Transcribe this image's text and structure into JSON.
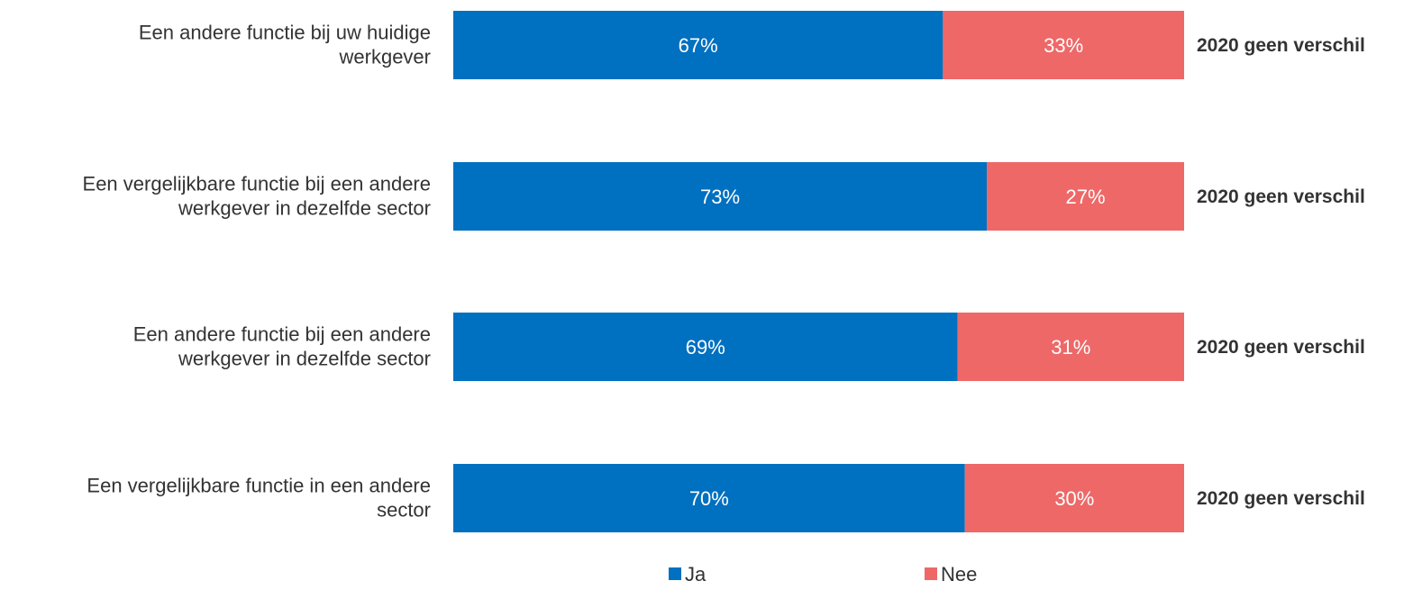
{
  "chart_data": {
    "type": "bar",
    "orientation": "horizontal",
    "stacked": true,
    "categories": [
      [
        "Een andere functie bij uw huidige",
        "werkgever"
      ],
      [
        "Een vergelijkbare functie bij een andere",
        "werkgever in dezelfde sector"
      ],
      [
        "Een andere functie bij een andere",
        "werkgever in dezelfde sector"
      ],
      [
        "Een vergelijkbare functie in een andere",
        "sector"
      ]
    ],
    "series": [
      {
        "name": "Ja",
        "color": "#0070C0",
        "values": [
          67,
          73,
          69,
          70
        ]
      },
      {
        "name": "Nee",
        "color": "#EE6868",
        "values": [
          33,
          27,
          31,
          30
        ]
      }
    ],
    "value_suffix": "%",
    "annotations": [
      "2020 geen verschil",
      "2020 geen verschil",
      "2020 geen verschil",
      "2020 geen verschil"
    ],
    "xlim": [
      0,
      100
    ],
    "grid": false,
    "legend": "bottom"
  }
}
